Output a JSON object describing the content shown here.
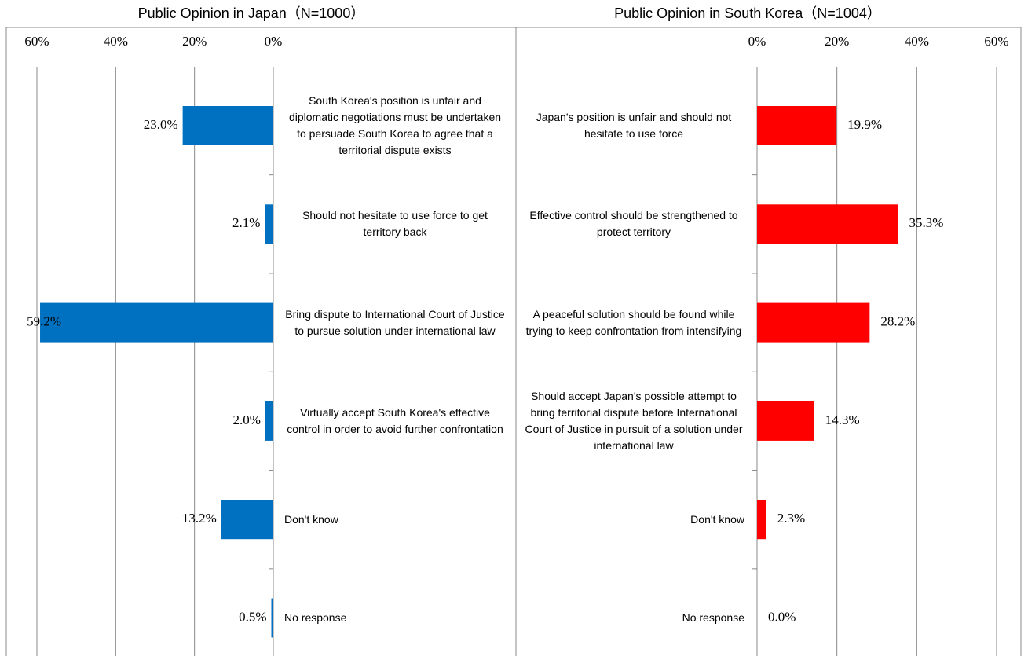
{
  "chart_data": [
    {
      "type": "bar",
      "orientation": "horizontal",
      "x_reversed": true,
      "title": "Public Opinion in Japan（N=1000）",
      "categories": [
        "South Korea's position is unfair and diplomatic negotiations must be undertaken to persuade South Korea to agree that a territorial dispute exists",
        "Should not hesitate to use force to get territory back",
        "Bring dispute to International Court of Justice to pursue solution under international law",
        "Virtually accept South Korea's effective control in order to avoid further confrontation",
        "Don't know",
        "No response"
      ],
      "values": [
        23.0,
        2.1,
        59.2,
        2.0,
        13.2,
        0.5
      ],
      "value_labels": [
        "23.0%",
        "2.1%",
        "59.2%",
        "2.0%",
        "13.2%",
        "0.5%"
      ],
      "color": "#0070c0",
      "xlim": [
        0,
        60
      ],
      "xticks": [
        {
          "value": 60,
          "label": "60%"
        },
        {
          "value": 40,
          "label": "40%"
        },
        {
          "value": 20,
          "label": "20%"
        },
        {
          "value": 0,
          "label": "0%"
        }
      ],
      "grid": true
    },
    {
      "type": "bar",
      "orientation": "horizontal",
      "x_reversed": false,
      "title": "Public Opinion in South Korea（N=1004）",
      "categories": [
        "Japan's position is unfair and should not hesitate to use force",
        "Effective control should be strengthened to protect territory",
        "A peaceful solution should be found while trying to keep confrontation from intensifying",
        "Should accept Japan's possible attempt to bring territorial dispute before International Court of Justice in pursuit of a solution under international law",
        "Don't know",
        "No response"
      ],
      "values": [
        19.9,
        35.3,
        28.2,
        14.3,
        2.3,
        0.0
      ],
      "value_labels": [
        "19.9%",
        "35.3%",
        "28.2%",
        "14.3%",
        "2.3%",
        "0.0%"
      ],
      "color": "#ff0000",
      "xlim": [
        0,
        60
      ],
      "xticks": [
        {
          "value": 0,
          "label": "0%"
        },
        {
          "value": 20,
          "label": "20%"
        },
        {
          "value": 40,
          "label": "40%"
        },
        {
          "value": 60,
          "label": "60%"
        }
      ],
      "grid": true
    }
  ]
}
